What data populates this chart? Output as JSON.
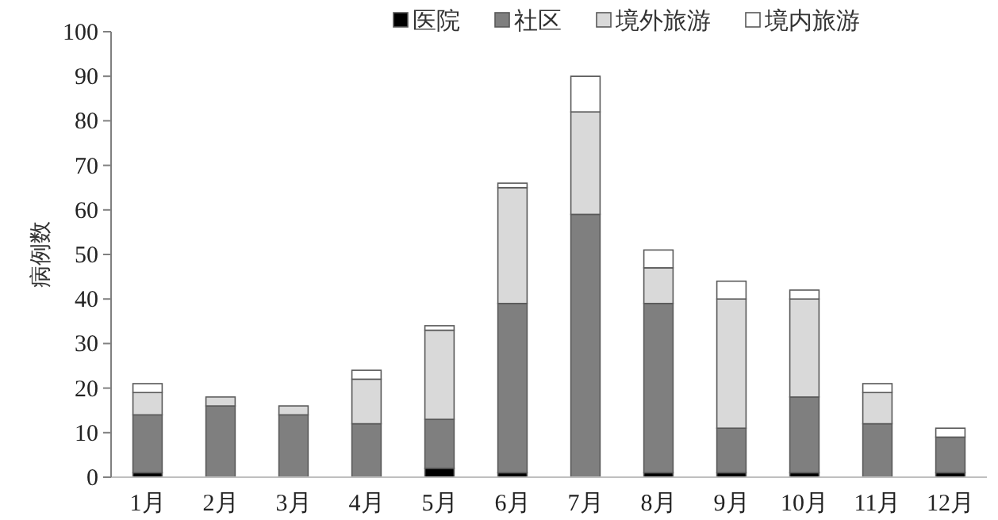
{
  "chart_data": {
    "type": "bar",
    "stacked": true,
    "ylabel": "病例数",
    "categories": [
      "1月",
      "2月",
      "3月",
      "4月",
      "5月",
      "6月",
      "7月",
      "8月",
      "9月",
      "10月",
      "11月",
      "12月"
    ],
    "series": [
      {
        "name": "医院",
        "color": "#000000",
        "values": [
          1,
          0,
          0,
          0,
          2,
          1,
          0,
          1,
          1,
          1,
          0,
          1
        ]
      },
      {
        "name": "社区",
        "color": "#7f7f7f",
        "values": [
          13,
          16,
          14,
          12,
          11,
          38,
          59,
          38,
          10,
          17,
          12,
          8
        ]
      },
      {
        "name": "境外旅游",
        "color": "#d9d9d9",
        "values": [
          5,
          2,
          2,
          10,
          20,
          26,
          23,
          8,
          29,
          22,
          7,
          0
        ]
      },
      {
        "name": "境内旅游",
        "color": "#ffffff",
        "values": [
          2,
          0,
          0,
          2,
          1,
          1,
          8,
          4,
          4,
          2,
          2,
          2
        ]
      }
    ],
    "ylim": [
      0,
      100
    ],
    "yticks": [
      0,
      10,
      20,
      30,
      40,
      50,
      60,
      70,
      80,
      90,
      100
    ],
    "grid": false,
    "legend": "top"
  }
}
